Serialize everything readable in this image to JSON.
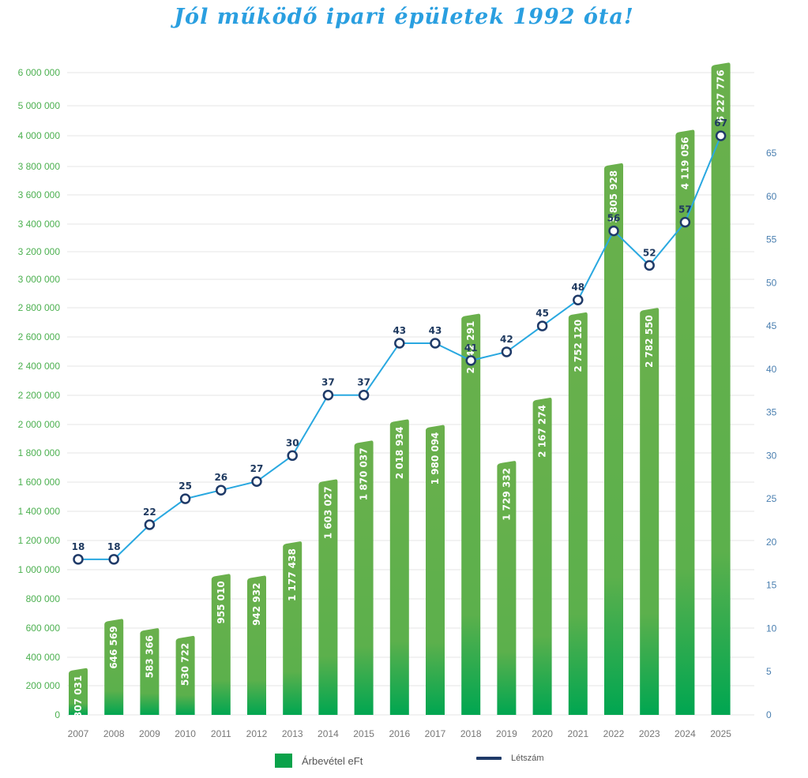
{
  "chart_data": {
    "type": "bar",
    "title": "Jól működő ipari épületek 1992 óta!",
    "categories": [
      "2007",
      "2008",
      "2009",
      "2010",
      "2011",
      "2012",
      "2013",
      "2014",
      "2015",
      "2016",
      "2017",
      "2018",
      "2019",
      "2020",
      "2021",
      "2022",
      "2023",
      "2024",
      "2025"
    ],
    "series": [
      {
        "name": "Árbevétel eFt",
        "type": "bar",
        "axis": "left",
        "values": [
          307031,
          646569,
          583366,
          530722,
          955010,
          942932,
          1177438,
          1603027,
          1870037,
          2018934,
          1980094,
          2742291,
          1729332,
          2167274,
          2752120,
          3805928,
          2782550,
          4119056,
          6227776
        ],
        "labels": [
          "307 031",
          "646 569",
          "583 366",
          "530 722",
          "955 010",
          "942 932",
          "1 177 438",
          "1 603 027",
          "1 870 037",
          "2 018 934",
          "1 980 094",
          "2 742 291",
          "1 729 332",
          "2 167 274",
          "2 752 120",
          "3 805 928",
          "2 782 550",
          "4 119 056",
          "6 227 776"
        ]
      },
      {
        "name": "Létszám",
        "type": "line",
        "axis": "right",
        "values": [
          18,
          18,
          22,
          25,
          26,
          27,
          30,
          37,
          37,
          43,
          43,
          41,
          42,
          45,
          48,
          56,
          52,
          57,
          67
        ],
        "labels": [
          "18",
          "18",
          "22",
          "25",
          "26",
          "27",
          "30",
          "37",
          "37",
          "43",
          "43",
          "41",
          "42",
          "45",
          "48",
          "56",
          "52",
          "57",
          "67"
        ]
      }
    ],
    "left_axis": {
      "ticks": [
        0,
        200000,
        400000,
        600000,
        800000,
        1000000,
        1200000,
        1400000,
        1600000,
        1800000,
        2000000,
        2200000,
        2400000,
        2600000,
        2800000,
        3000000,
        3200000,
        3400000,
        3600000,
        3800000,
        4000000,
        5000000,
        6000000
      ],
      "tick_labels": [
        "0",
        "200 000",
        "400 000",
        "600 000",
        "800 000",
        "1 000 000",
        "1 200 000",
        "1 400 000",
        "1 600 000",
        "1 800 000",
        "2 000 000",
        "2 200 000",
        "2 400 000",
        "2 600 000",
        "2 800 000",
        "3 000 000",
        "3 200 000",
        "3 400 000",
        "3 600 000",
        "3 800 000",
        "4 000 000",
        "5 000 000",
        "6 000 000"
      ]
    },
    "right_axis": {
      "ticks": [
        0,
        5,
        10,
        15,
        20,
        25,
        30,
        35,
        40,
        45,
        50,
        55,
        60,
        65
      ],
      "tick_labels": [
        "0",
        "5",
        "10",
        "15",
        "20",
        "25",
        "30",
        "35",
        "40",
        "45",
        "50",
        "55",
        "60",
        "65"
      ]
    },
    "grid": true,
    "legend_position": "bottom",
    "colors": {
      "bar_top": "#6ab04c",
      "bar_bottom": "#00a651",
      "line": "#29a8e0",
      "marker": "#1f3a68",
      "grid": "#e6e6e6",
      "left_tick": "#4cb050",
      "right_tick": "#4a7fb0",
      "title": "#2a9fe0"
    }
  },
  "legend": {
    "bar_label": "Árbevétel eFt",
    "line_label": "Létszám"
  }
}
